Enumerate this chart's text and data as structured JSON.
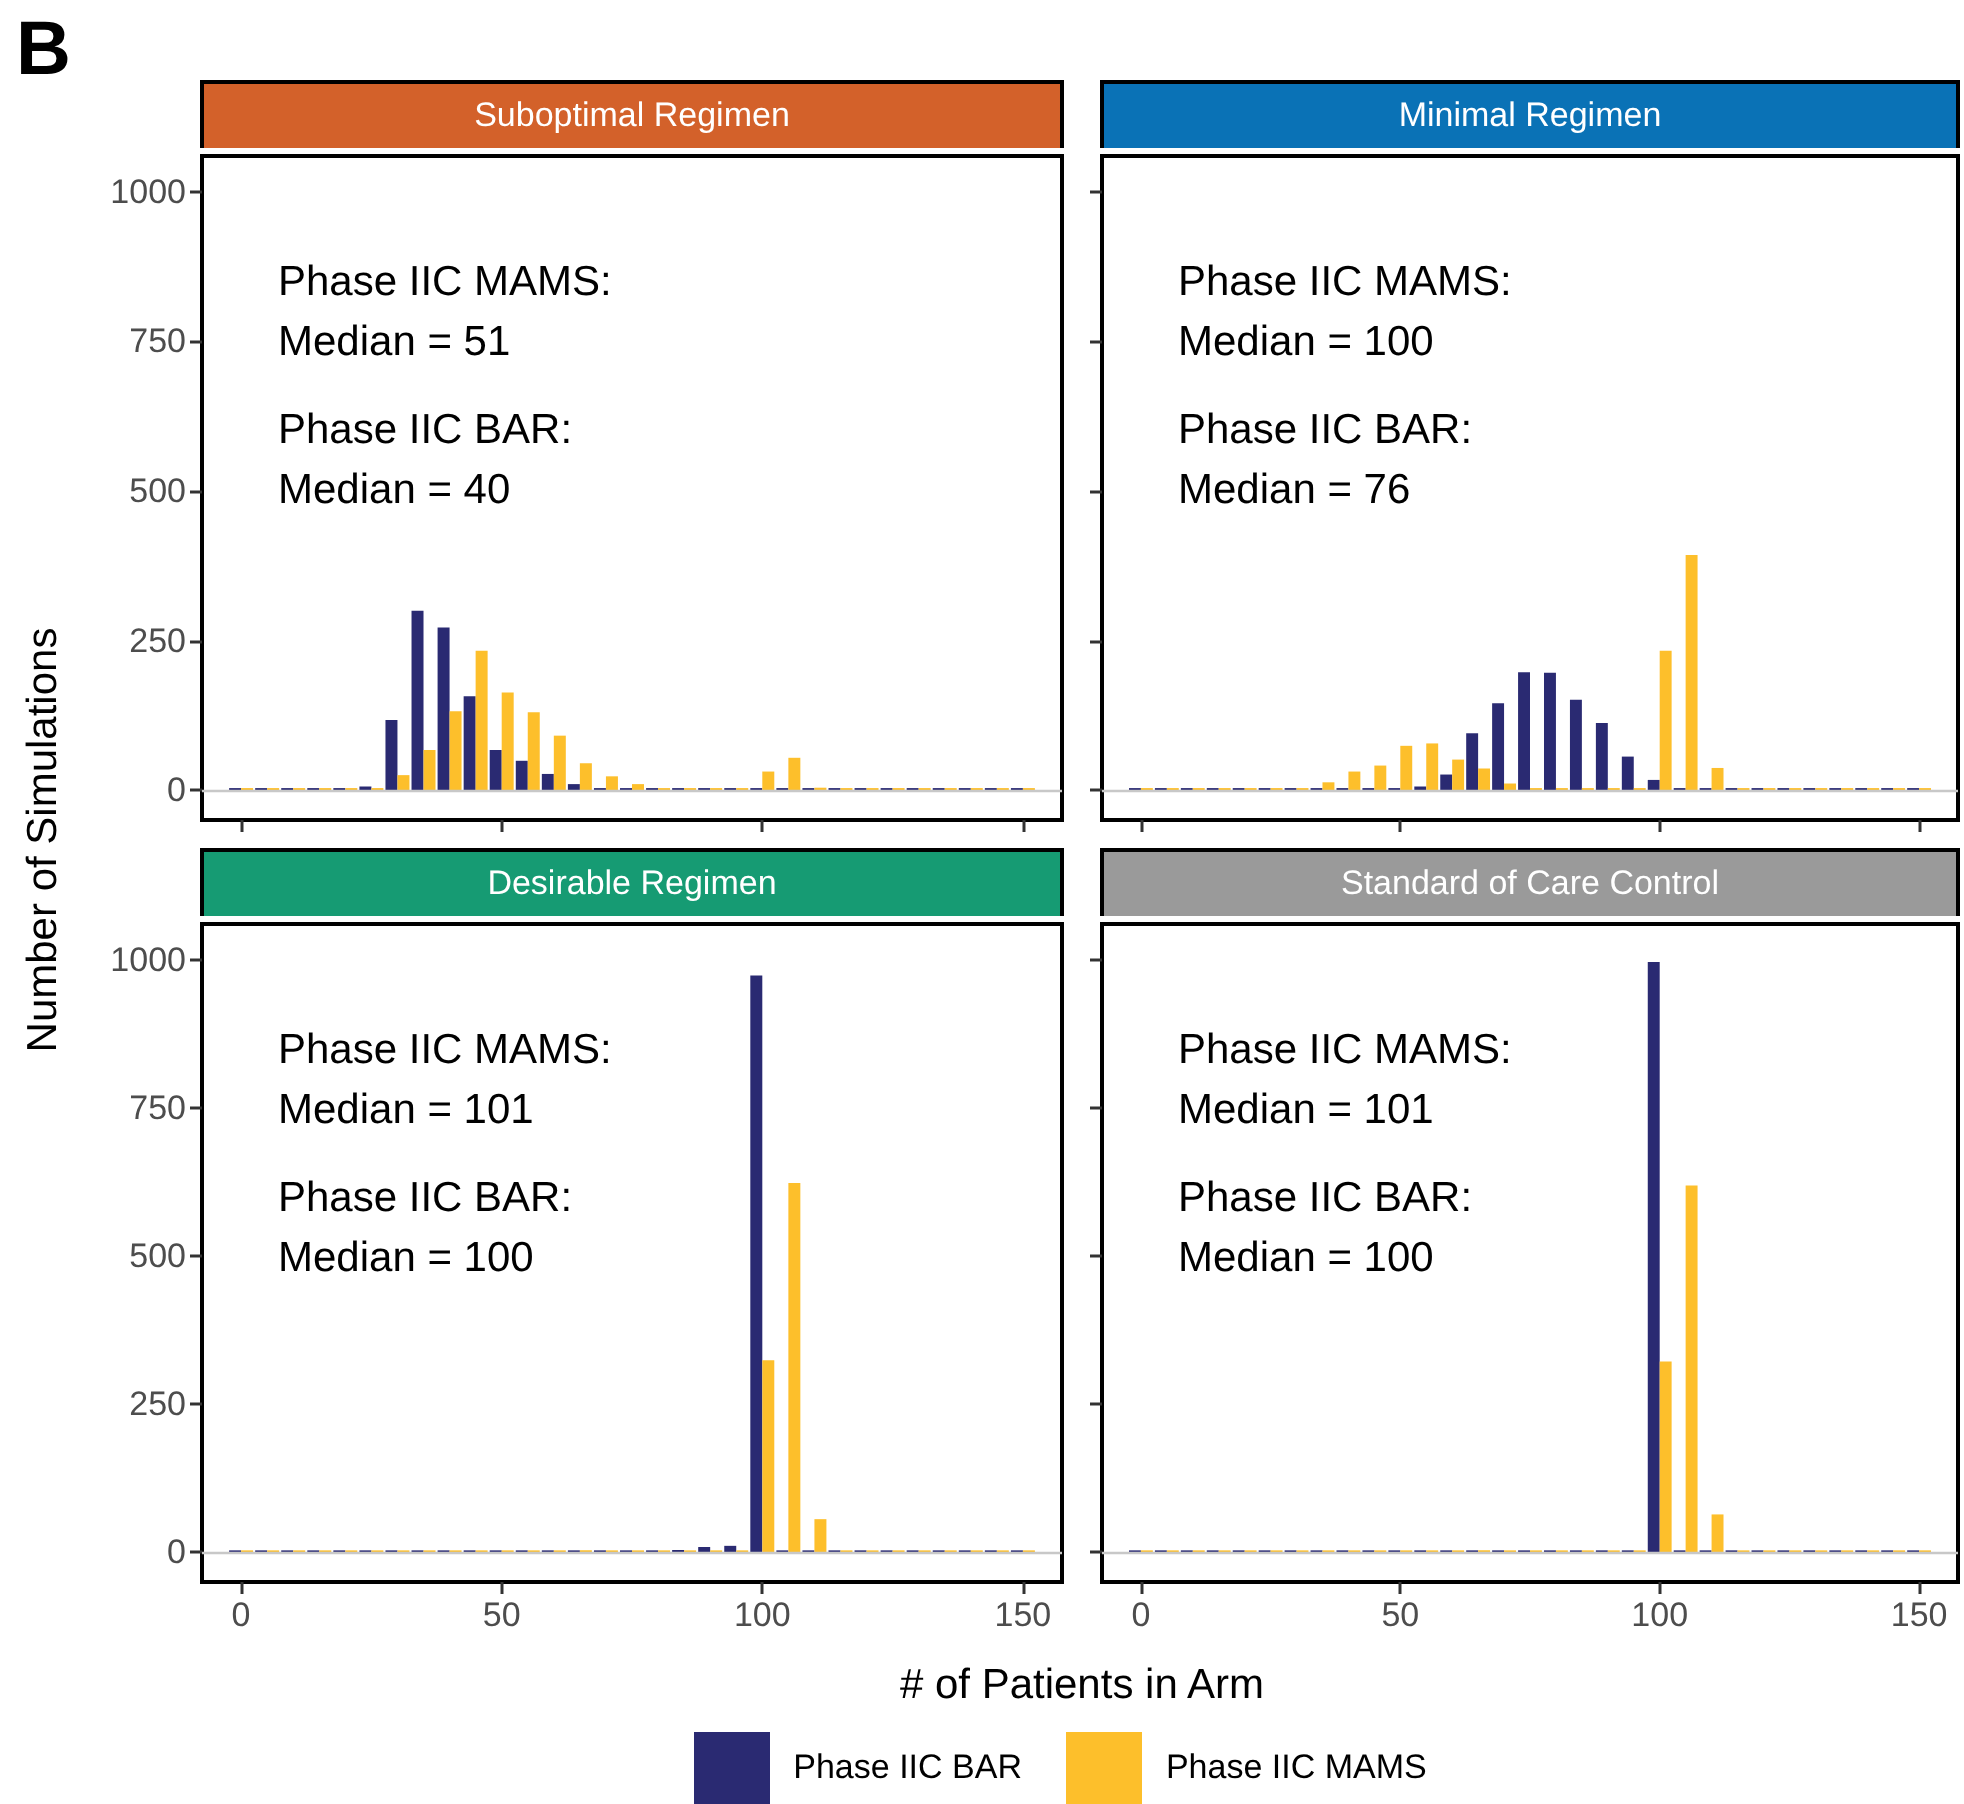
{
  "chart_data": [
    {
      "type": "bar",
      "title": "Suboptimal Regimen",
      "ylabel": "Number of Simulations",
      "annotations": [
        "B",
        "Phase IIC MAMS:\nMedian = 51",
        "Phase IIC BAR:\nMedian = 40"
      ],
      "x": [
        0,
        5,
        10,
        15,
        20,
        25,
        30,
        35,
        40,
        45,
        50,
        55,
        60,
        65,
        70,
        75,
        80,
        85,
        90,
        95,
        100,
        105,
        110,
        115,
        120,
        125,
        130,
        135,
        140,
        145,
        150
      ],
      "series": [
        {
          "name": "Phase IIC BAR",
          "color": "#2a2a72",
          "values": [
            0,
            0,
            0,
            0,
            0,
            6,
            117,
            300,
            272,
            157,
            67,
            49,
            27,
            10,
            0,
            0,
            3,
            0,
            0,
            0,
            0,
            0,
            0,
            0,
            0,
            0,
            0,
            0,
            0,
            0,
            0
          ]
        },
        {
          "name": "Phase IIC MAMS",
          "color": "#fdbf2b",
          "values": [
            0,
            0,
            0,
            0,
            0,
            3,
            25,
            67,
            132,
            233,
            163,
            130,
            91,
            45,
            23,
            10,
            3,
            2,
            0,
            0,
            31,
            54,
            4,
            0,
            0,
            0,
            0,
            0,
            0,
            0,
            0
          ]
        }
      ],
      "xlim": [
        -7.5,
        157.5
      ],
      "xticks": [
        0,
        50,
        100,
        150
      ],
      "ylim": [
        -50,
        1060
      ],
      "yticks": [
        0,
        250,
        500,
        750,
        1000
      ],
      "tick_labels": "y",
      "ref_lines": [
        {
          "axis": "y",
          "value": 0,
          "color": "#c8c8c8"
        }
      ],
      "grid": false,
      "legend": "bottom"
    },
    {
      "type": "bar",
      "title": "Minimal Regimen",
      "annotations": [
        "Phase IIC MAMS:\nMedian = 100",
        "Phase IIC BAR:\nMedian = 76"
      ],
      "x": [
        0,
        5,
        10,
        15,
        20,
        25,
        30,
        35,
        40,
        45,
        50,
        55,
        60,
        65,
        70,
        75,
        80,
        85,
        90,
        95,
        100,
        105,
        110,
        115,
        120,
        125,
        130,
        135,
        140,
        145,
        150
      ],
      "series": [
        {
          "color": "#2a2a72",
          "values": [
            0,
            0,
            0,
            0,
            0,
            0,
            0,
            0,
            0,
            0,
            2,
            6,
            26,
            95,
            145,
            197,
            196,
            151,
            112,
            56,
            17,
            0,
            0,
            0,
            0,
            0,
            0,
            0,
            0,
            0,
            0
          ]
        },
        {
          "color": "#fdbf2b",
          "values": [
            0,
            0,
            0,
            0,
            0,
            0,
            3,
            13,
            31,
            41,
            74,
            78,
            51,
            36,
            11,
            3,
            0,
            0,
            0,
            0,
            233,
            393,
            37,
            0,
            0,
            0,
            0,
            0,
            0,
            0,
            0
          ]
        }
      ],
      "xlim": [
        -7.5,
        157.5
      ],
      "xticks": [
        0,
        50,
        100,
        150
      ],
      "ylim": [
        -50,
        1060
      ],
      "yticks": [
        0,
        250,
        500,
        750,
        1000
      ],
      "tick_labels": false,
      "ref_lines": [
        {
          "axis": "y",
          "value": 0,
          "color": "#c8c8c8"
        }
      ],
      "grid": false
    },
    {
      "type": "bar",
      "title": "Desirable Regimen",
      "xlabel": "# of Patients in Arm",
      "annotations": [
        "Phase IIC MAMS:\nMedian = 101",
        "Phase IIC BAR:\nMedian = 100"
      ],
      "x": [
        0,
        5,
        10,
        15,
        20,
        25,
        30,
        35,
        40,
        45,
        50,
        55,
        60,
        65,
        70,
        75,
        80,
        85,
        90,
        95,
        100,
        105,
        110,
        115,
        120,
        125,
        130,
        135,
        140,
        145,
        150
      ],
      "series": [
        {
          "color": "#2a2a72",
          "values": [
            0,
            0,
            0,
            0,
            0,
            0,
            0,
            0,
            0,
            0,
            0,
            0,
            0,
            0,
            0,
            0,
            2,
            4,
            9,
            11,
            973,
            0,
            0,
            0,
            0,
            0,
            0,
            0,
            0,
            0,
            0
          ]
        },
        {
          "color": "#fdbf2b",
          "values": [
            0,
            0,
            0,
            0,
            0,
            0,
            0,
            0,
            0,
            0,
            0,
            0,
            0,
            0,
            0,
            0,
            0,
            0,
            0,
            0,
            324,
            623,
            56,
            0,
            0,
            0,
            0,
            0,
            0,
            0,
            0
          ]
        }
      ],
      "xlim": [
        -7.5,
        157.5
      ],
      "xticks": [
        0,
        50,
        100,
        150
      ],
      "ylim": [
        -50,
        1060
      ],
      "yticks": [
        0,
        250,
        500,
        750,
        1000
      ],
      "ref_lines": [
        {
          "axis": "y",
          "value": 0,
          "color": "#c8c8c8"
        }
      ],
      "grid": false
    },
    {
      "type": "bar",
      "title": "Standard of Care Control",
      "annotations": [
        "Phase IIC MAMS:\nMedian = 101",
        "Phase IIC BAR:\nMedian = 100"
      ],
      "x": [
        0,
        5,
        10,
        15,
        20,
        25,
        30,
        35,
        40,
        45,
        50,
        55,
        60,
        65,
        70,
        75,
        80,
        85,
        90,
        95,
        100,
        105,
        110,
        115,
        120,
        125,
        130,
        135,
        140,
        145,
        150
      ],
      "series": [
        {
          "color": "#2a2a72",
          "values": [
            0,
            0,
            0,
            0,
            0,
            0,
            0,
            0,
            0,
            0,
            0,
            0,
            0,
            0,
            0,
            0,
            0,
            0,
            0,
            0,
            996,
            0,
            0,
            0,
            0,
            0,
            0,
            0,
            0,
            0,
            0
          ]
        },
        {
          "color": "#fdbf2b",
          "values": [
            0,
            0,
            0,
            0,
            0,
            0,
            0,
            0,
            0,
            0,
            0,
            0,
            0,
            0,
            0,
            0,
            0,
            0,
            0,
            0,
            322,
            619,
            64,
            0,
            0,
            0,
            0,
            0,
            0,
            0,
            0
          ]
        }
      ],
      "xlim": [
        -7.5,
        157.5
      ],
      "xticks": [
        0,
        50,
        100,
        150
      ],
      "ylim": [
        -50,
        1060
      ],
      "yticks": [
        0,
        250,
        500,
        750,
        1000
      ],
      "tick_labels": "x",
      "ref_lines": [
        {
          "axis": "y",
          "value": 0,
          "color": "#c8c8c8"
        }
      ],
      "grid": false
    }
  ]
}
